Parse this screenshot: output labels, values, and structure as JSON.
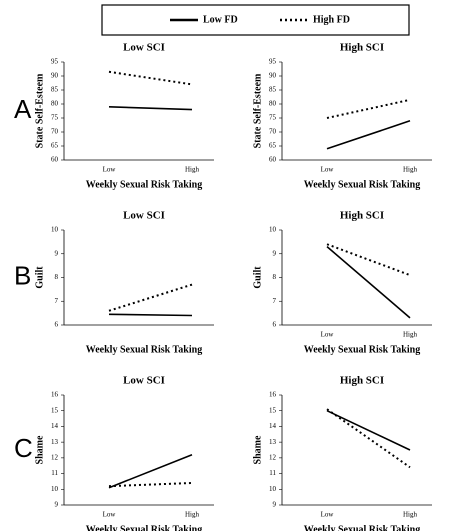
{
  "legend": [
    {
      "name": "Low FD",
      "style": "solid"
    },
    {
      "name": "High FD",
      "style": "dotted"
    }
  ],
  "panel_labels": [
    "A",
    "B",
    "C"
  ],
  "chart_data": [
    {
      "type": "line",
      "title": "Low SCI",
      "xlabel": "Weekly Sexual Risk Taking",
      "ylabel": "State Self-Esteem",
      "categories": [
        "Low",
        "High"
      ],
      "ylim": [
        60,
        95
      ],
      "yticks": [
        60,
        65,
        70,
        75,
        80,
        85,
        90,
        95
      ],
      "series": [
        {
          "style": "solid",
          "values": [
            79,
            78
          ]
        },
        {
          "style": "dotted",
          "values": [
            91.5,
            87
          ]
        }
      ]
    },
    {
      "type": "line",
      "title": "High SCI",
      "xlabel": "Weekly Sexual Risk Taking",
      "ylabel": "State Self-Esteem",
      "categories": [
        "Low",
        "High"
      ],
      "ylim": [
        60,
        95
      ],
      "yticks": [
        60,
        65,
        70,
        75,
        80,
        85,
        90,
        95
      ],
      "series": [
        {
          "style": "solid",
          "values": [
            64,
            74
          ]
        },
        {
          "style": "dotted",
          "values": [
            75,
            81.5
          ]
        }
      ]
    },
    {
      "type": "line",
      "title": "Low SCI",
      "xlabel": "Weekly Sexual Risk Taking",
      "ylabel": "Guilt",
      "categories": [
        null,
        null
      ],
      "ylim": [
        6,
        10
      ],
      "yticks": [
        6,
        7,
        8,
        9,
        10
      ],
      "series": [
        {
          "style": "solid",
          "values": [
            6.45,
            6.4
          ]
        },
        {
          "style": "dotted",
          "values": [
            6.6,
            7.7
          ]
        }
      ]
    },
    {
      "type": "line",
      "title": "High SCI",
      "xlabel": "Weekly Sexual Risk Taking",
      "ylabel": "Guilt",
      "categories": [
        "Low",
        "High"
      ],
      "ylim": [
        6,
        10
      ],
      "yticks": [
        6,
        7,
        8,
        9,
        10
      ],
      "series": [
        {
          "style": "solid",
          "values": [
            9.3,
            6.3
          ]
        },
        {
          "style": "dotted",
          "values": [
            9.4,
            8.1
          ]
        }
      ]
    },
    {
      "type": "line",
      "title": "Low SCI",
      "xlabel": "Weekly Sexual Risk Taking",
      "ylabel": "Shame",
      "categories": [
        "Low",
        "High"
      ],
      "ylim": [
        9,
        16
      ],
      "yticks": [
        9,
        10,
        11,
        12,
        13,
        14,
        15,
        16
      ],
      "series": [
        {
          "style": "solid",
          "values": [
            10.1,
            12.2
          ]
        },
        {
          "style": "dotted",
          "values": [
            10.2,
            10.4
          ]
        }
      ]
    },
    {
      "type": "line",
      "title": "High SCI",
      "xlabel": "Weekly Sexual Risk Taking",
      "ylabel": "Shame",
      "categories": [
        "Low",
        "High"
      ],
      "ylim": [
        9,
        16
      ],
      "yticks": [
        9,
        10,
        11,
        12,
        13,
        14,
        15,
        16
      ],
      "series": [
        {
          "style": "solid",
          "values": [
            15,
            12.5
          ]
        },
        {
          "style": "dotted",
          "values": [
            15.1,
            11.4
          ]
        }
      ]
    }
  ]
}
